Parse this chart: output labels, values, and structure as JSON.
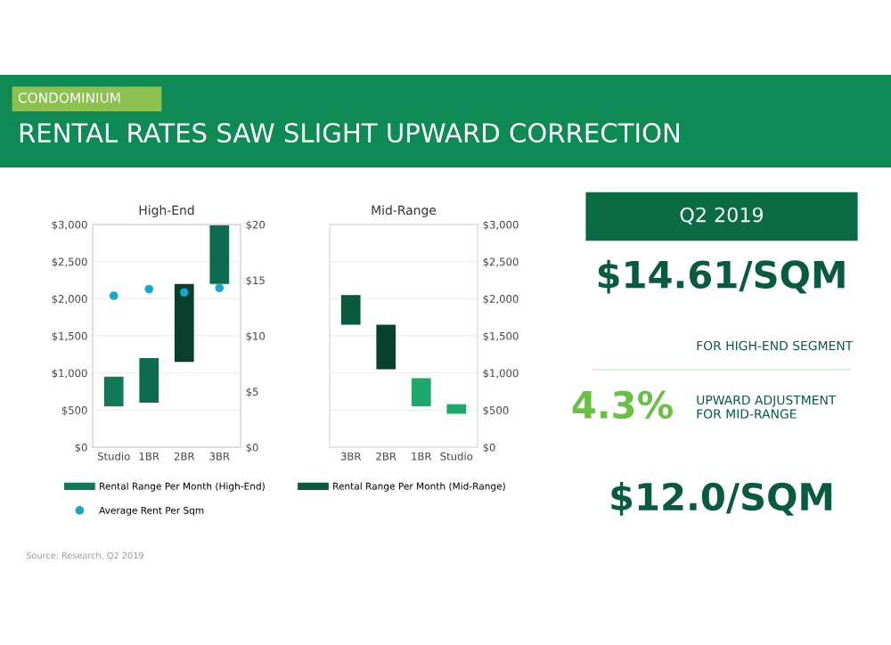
{
  "chart_data": [
    {
      "type": "other",
      "title": "RENTAL RATES SAW SLIGHT UPWARD CORRECTION",
      "subtitle": "CONDOMINIUM"
    },
    {
      "type": "bar",
      "title": "High-End",
      "categories": [
        "Studio",
        "1BR",
        "2BR",
        "3BR"
      ],
      "series": [
        {
          "name": "Rental Range Per Month (High-End)",
          "type": "bar",
          "colors": [
            "#11785a",
            "#0d6b4e",
            "#0a3f2e",
            "#0f6b4f"
          ],
          "base": [
            550,
            600,
            1150,
            2200
          ],
          "values": [
            400,
            600,
            1050,
            800
          ]
        },
        {
          "name": "Average Rent Per Sqm",
          "type": "scatter",
          "axis": "y2",
          "color": "#1aa6c8",
          "values": [
            13.6,
            14.2,
            13.9,
            14.3
          ]
        }
      ],
      "ylim": [
        0,
        3000
      ],
      "yticks": [
        {
          "value": 0,
          "label": "$0"
        },
        {
          "value": 500,
          "label": "$500"
        },
        {
          "value": 1000,
          "label": "$1,000"
        },
        {
          "value": 1500,
          "label": "$1,500"
        },
        {
          "value": 2000,
          "label": "$2,000"
        },
        {
          "value": 2500,
          "label": "$2,500"
        },
        {
          "value": 3000,
          "label": "$3,000"
        }
      ],
      "y2lim": [
        0,
        20
      ],
      "y2ticks": [
        {
          "value": 0,
          "label": "$0"
        },
        {
          "value": 5,
          "label": "$5"
        },
        {
          "value": 10,
          "label": "$10"
        },
        {
          "value": 15,
          "label": "$15"
        },
        {
          "value": 20,
          "label": "$20"
        }
      ],
      "grid": "y",
      "legend": "bottom",
      "annotations": [
        "Source: Research, Q2 2019"
      ]
    },
    {
      "type": "bar",
      "title": "Mid-Range",
      "categories": [
        "3BR",
        "2BR",
        "1BR",
        "Studio"
      ],
      "series": [
        {
          "name": "Rental Range Per Month (Mid-Range)",
          "type": "bar",
          "colors": [
            "#0a5a3e",
            "#07412c",
            "#1fa86b",
            "#1fa86b"
          ],
          "base": [
            1650,
            1050,
            550,
            450
          ],
          "values": [
            400,
            600,
            380,
            130
          ]
        }
      ],
      "ylim": [
        0,
        3000
      ],
      "yticks": [
        {
          "value": 0,
          "label": "$0"
        },
        {
          "value": 500,
          "label": "$500"
        },
        {
          "value": 1000,
          "label": "$1,000"
        },
        {
          "value": 1500,
          "label": "$1,500"
        },
        {
          "value": 2000,
          "label": "$2,000"
        },
        {
          "value": 2500,
          "label": "$2,500"
        },
        {
          "value": 3000,
          "label": "$3,000"
        }
      ],
      "grid": "y",
      "legend": "bottom"
    },
    {
      "type": "other",
      "annotations": [
        "Q2 2019",
        "$14.61/SQM",
        "FOR HIGH-END SEGMENT",
        "4.3%",
        "UPWARD ADJUSTMENT FOR MID-RANGE",
        "$12.0/SQM"
      ]
    }
  ]
}
